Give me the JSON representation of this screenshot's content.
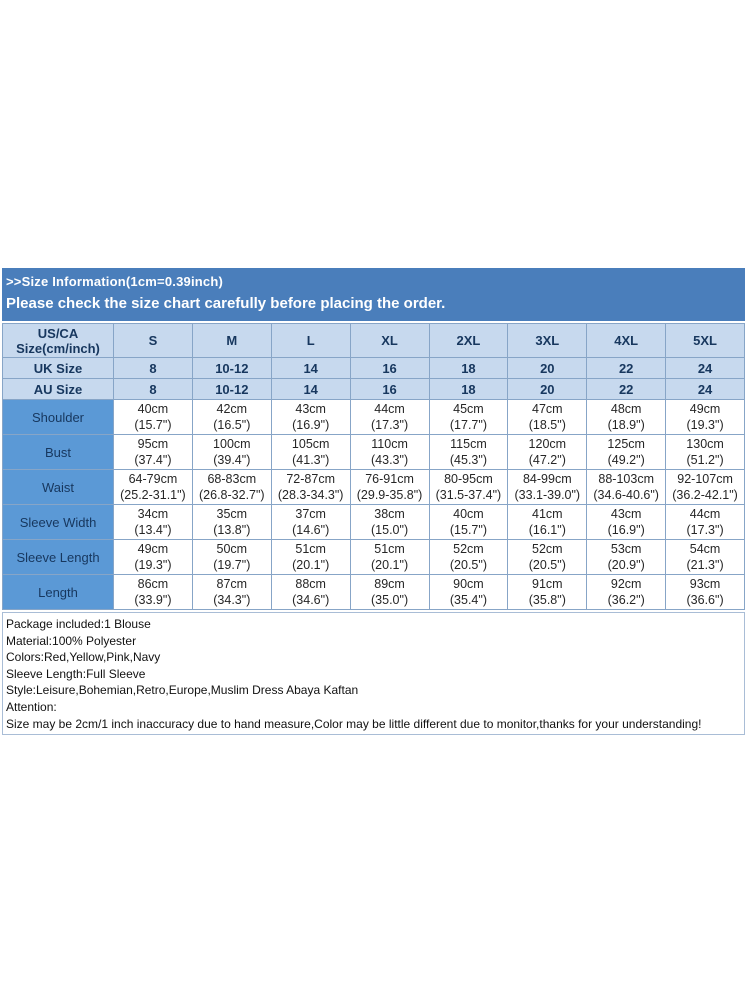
{
  "header": {
    "title": ">>Size Information(1cm=0.39inch)",
    "subtitle": "Please check the size chart carefully before placing the order.",
    "background_color": "#4A7EBB",
    "text_color": "#FFFFFF"
  },
  "size_table": {
    "corner": {
      "line1": "US/CA",
      "line2": "Size(cm/inch)"
    },
    "columns": [
      "S",
      "M",
      "L",
      "XL",
      "2XL",
      "3XL",
      "4XL",
      "5XL"
    ],
    "uk_row": {
      "label": "UK Size",
      "values": [
        "8",
        "10-12",
        "14",
        "16",
        "18",
        "20",
        "22",
        "24"
      ]
    },
    "au_row": {
      "label": "AU Size",
      "values": [
        "8",
        "10-12",
        "14",
        "16",
        "18",
        "20",
        "22",
        "24"
      ]
    },
    "measure_rows": [
      {
        "label": "Shoulder",
        "cm": [
          "40cm",
          "42cm",
          "43cm",
          "44cm",
          "45cm",
          "47cm",
          "48cm",
          "49cm"
        ],
        "inch": [
          "(15.7\")",
          "(16.5\")",
          "(16.9\")",
          "(17.3\")",
          "(17.7\")",
          "(18.5\")",
          "(18.9\")",
          "(19.3\")"
        ]
      },
      {
        "label": "Bust",
        "cm": [
          "95cm",
          "100cm",
          "105cm",
          "110cm",
          "115cm",
          "120cm",
          "125cm",
          "130cm"
        ],
        "inch": [
          "(37.4\")",
          "(39.4\")",
          "(41.3\")",
          "(43.3\")",
          "(45.3\")",
          "(47.2\")",
          "(49.2\")",
          "(51.2\")"
        ]
      },
      {
        "label": "Waist",
        "cm": [
          "64-79cm",
          "68-83cm",
          "72-87cm",
          "76-91cm",
          "80-95cm",
          "84-99cm",
          "88-103cm",
          "92-107cm"
        ],
        "inch": [
          "(25.2-31.1\")",
          "(26.8-32.7\")",
          "(28.3-34.3\")",
          "(29.9-35.8\")",
          "(31.5-37.4\")",
          "(33.1-39.0\")",
          "(34.6-40.6\")",
          "(36.2-42.1\")"
        ]
      },
      {
        "label": "Sleeve Width",
        "cm": [
          "34cm",
          "35cm",
          "37cm",
          "38cm",
          "40cm",
          "41cm",
          "43cm",
          "44cm"
        ],
        "inch": [
          "(13.4\")",
          "(13.8\")",
          "(14.6\")",
          "(15.0\")",
          "(15.7\")",
          "(16.1\")",
          "(16.9\")",
          "(17.3\")"
        ]
      },
      {
        "label": "Sleeve Length",
        "cm": [
          "49cm",
          "50cm",
          "51cm",
          "51cm",
          "52cm",
          "52cm",
          "53cm",
          "54cm"
        ],
        "inch": [
          "(19.3\")",
          "(19.7\")",
          "(20.1\")",
          "(20.1\")",
          "(20.5\")",
          "(20.5\")",
          "(20.9\")",
          "(21.3\")"
        ]
      },
      {
        "label": "Length",
        "cm": [
          "86cm",
          "87cm",
          "88cm",
          "89cm",
          "90cm",
          "91cm",
          "92cm",
          "93cm"
        ],
        "inch": [
          "(33.9\")",
          "(34.3\")",
          "(34.6\")",
          "(35.0\")",
          "(35.4\")",
          "(35.8\")",
          "(36.2\")",
          "(36.6\")"
        ]
      }
    ],
    "colors": {
      "header_bg": "#C7D9EE",
      "label_bg": "#5B99D6",
      "border": "#87A5C7",
      "header_text": "#17375E",
      "cell_text": "#262626"
    }
  },
  "details": {
    "lines": [
      "Package included:1 Blouse",
      "Material:100% Polyester",
      "Colors:Red,Yellow,Pink,Navy",
      "Sleeve Length:Full Sleeve",
      "Style:Leisure,Bohemian,Retro,Europe,Muslim Dress Abaya Kaftan",
      "Attention:",
      "Size may be 2cm/1 inch inaccuracy due to hand measure,Color may be little different due to monitor,thanks for your understanding!"
    ]
  }
}
